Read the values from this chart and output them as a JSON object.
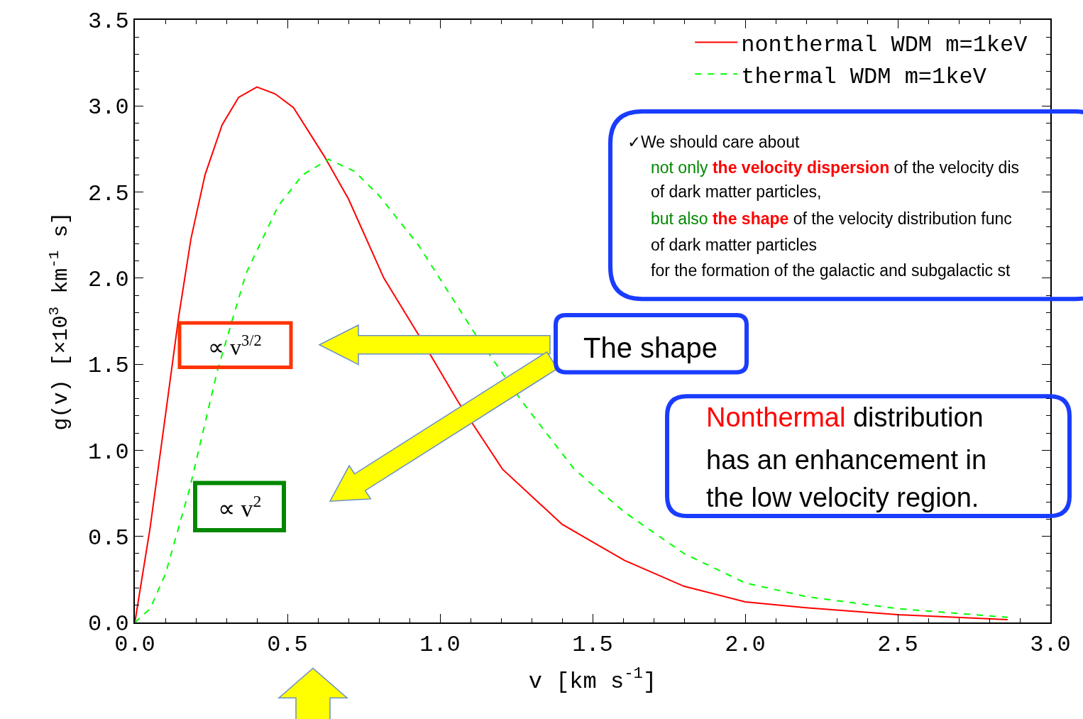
{
  "chart_data": {
    "type": "line",
    "xlabel": "v [km s$^{-1}$]",
    "ylabel": "g(v) [×10$^{3}$ km$^{-1}$ s]",
    "xlim": [
      0,
      3
    ],
    "ylim": [
      0,
      3.5
    ],
    "xticks": [
      {
        "value": 0,
        "label": "0.0"
      },
      {
        "value": 0.5,
        "label": "0.5"
      },
      {
        "value": 1,
        "label": "1.0"
      },
      {
        "value": 1.5,
        "label": "1.5"
      },
      {
        "value": 2,
        "label": "2.0"
      },
      {
        "value": 2.5,
        "label": "2.5"
      },
      {
        "value": 3,
        "label": "3.0"
      }
    ],
    "yticks": [
      {
        "value": 0,
        "label": "0.0"
      },
      {
        "value": 0.5,
        "label": "0.5"
      },
      {
        "value": 1,
        "label": "1.0"
      },
      {
        "value": 1.5,
        "label": "1.5"
      },
      {
        "value": 2,
        "label": "2.0"
      },
      {
        "value": 2.5,
        "label": "2.5"
      },
      {
        "value": 3,
        "label": "3.0"
      },
      {
        "value": 3.5,
        "label": "3.5"
      }
    ],
    "legend": "top right",
    "series": [
      {
        "name": "nonthermal WDM m=1keV",
        "color": "#ff0000",
        "line_style": "solid",
        "x": [
          0,
          0.05,
          0.1,
          0.144,
          0.184,
          0.23,
          0.286,
          0.34,
          0.4,
          0.46,
          0.52,
          0.62,
          0.7,
          0.816,
          0.93,
          1.06,
          1.205,
          1.4,
          1.605,
          1.8,
          2.0,
          2.2,
          2.5,
          2.86
        ],
        "values": [
          0,
          0.55,
          1.2,
          1.78,
          2.23,
          2.6,
          2.89,
          3.05,
          3.11,
          3.07,
          2.99,
          2.71,
          2.46,
          2.0,
          1.67,
          1.28,
          0.89,
          0.57,
          0.36,
          0.21,
          0.12,
          0.086,
          0.045,
          0.016
        ]
      },
      {
        "name": "thermal WDM m=1keV",
        "color": "#00ff00",
        "line_style": "dashed",
        "x": [
          0,
          0.05,
          0.1,
          0.18,
          0.27,
          0.365,
          0.47,
          0.55,
          0.635,
          0.72,
          0.8,
          0.93,
          1.11,
          1.27,
          1.44,
          1.605,
          1.8,
          2.0,
          2.2,
          2.5,
          2.86
        ],
        "values": [
          0,
          0.08,
          0.28,
          0.78,
          1.46,
          2.03,
          2.42,
          2.6,
          2.69,
          2.62,
          2.48,
          2.19,
          1.69,
          1.28,
          0.89,
          0.64,
          0.4,
          0.23,
          0.15,
          0.08,
          0.03
        ]
      }
    ],
    "annotations": [
      "✓We should care about",
      "not only",
      "the velocity dispersion",
      "of the velocity dis",
      "of dark matter particles,",
      "but also",
      "the shape",
      "of the velocity distribution func",
      "of dark matter particles",
      "for the formation of the galactic and subgalactic st",
      "The shape",
      "Nonthermal",
      "distribution",
      "has an enhancement in",
      "the low velocity region.",
      "∝ v$^{3/2}$",
      "∝ v$^{2}$"
    ]
  }
}
